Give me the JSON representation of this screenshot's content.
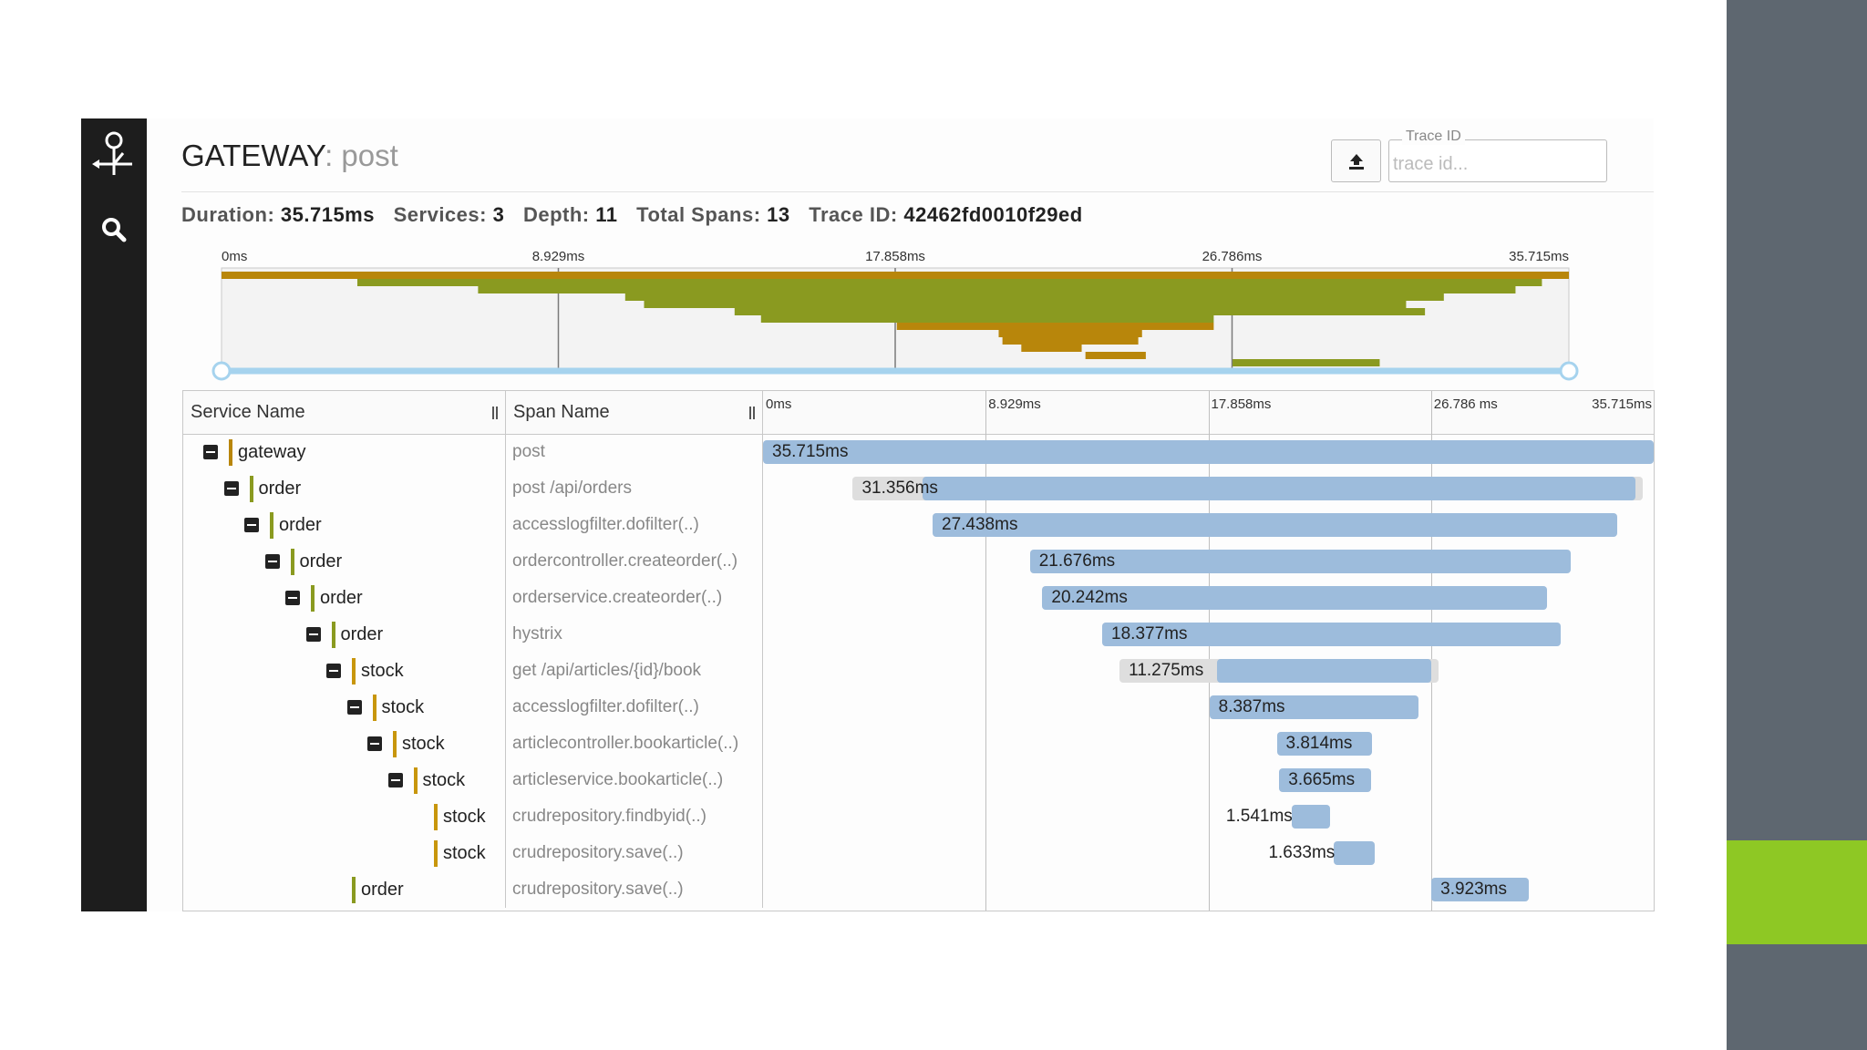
{
  "colors": {
    "sidebar_bg": "#1d1d1d",
    "bar_blue": "#9dbcdc",
    "bar_ghost": "#dedede",
    "service_gateway": "#b8860b",
    "service_order": "#8a9a20",
    "service_stock": "#c8960c",
    "right_strip": "#5e6770",
    "right_accent": "#8ec824",
    "range_handle": "#a6d3ee"
  },
  "sidebar": {
    "logo_icon": "zipkin-logo-icon",
    "search_icon": "search-icon"
  },
  "header": {
    "service": "GATEWAY",
    "separator": ": ",
    "span": "post",
    "upload_icon": "upload-icon",
    "trace_id_label": "Trace ID",
    "trace_id_placeholder": "trace id..."
  },
  "stats": {
    "duration_label": "Duration:",
    "duration": "35.715ms",
    "services_label": "Services:",
    "services": "3",
    "depth_label": "Depth:",
    "depth": "11",
    "spans_label": "Total Spans:",
    "spans": "13",
    "traceid_label": "Trace ID:",
    "trace_id": "42462fd0010f29ed"
  },
  "timeline": {
    "total_ms": 35.715,
    "ticks": [
      "0ms",
      "8.929ms",
      "17.858ms",
      "26.786ms",
      "35.715ms"
    ],
    "table_ticks": [
      "0ms",
      "8.929ms",
      "17.858ms",
      "26.786 ms",
      "35.715ms"
    ]
  },
  "table": {
    "col_service": "Service Name",
    "col_span": "Span Name",
    "rows": [
      {
        "depth": 0,
        "toggle": true,
        "service": "gateway",
        "color": "#b8860b",
        "span": "post",
        "start_ms": 0.0,
        "duration_ms": 35.715,
        "label": "35.715ms",
        "ghost_start_ms": null
      },
      {
        "depth": 1,
        "toggle": true,
        "service": "order",
        "color": "#8a9a20",
        "span": "post /api/orders",
        "start_ms": 6.4,
        "duration_ms": 28.6,
        "label": "31.356ms",
        "ghost_start_ms": 3.6
      },
      {
        "depth": 2,
        "toggle": true,
        "service": "order",
        "color": "#8a9a20",
        "span": "accesslogfilter.dofilter(..)",
        "start_ms": 6.8,
        "duration_ms": 27.438,
        "label": "27.438ms",
        "ghost_start_ms": null
      },
      {
        "depth": 3,
        "toggle": true,
        "service": "order",
        "color": "#8a9a20",
        "span": "ordercontroller.createorder(..)",
        "start_ms": 10.7,
        "duration_ms": 21.676,
        "label": "21.676ms",
        "ghost_start_ms": null
      },
      {
        "depth": 4,
        "toggle": true,
        "service": "order",
        "color": "#8a9a20",
        "span": "orderservice.createorder(..)",
        "start_ms": 11.2,
        "duration_ms": 20.242,
        "label": "20.242ms",
        "ghost_start_ms": null
      },
      {
        "depth": 5,
        "toggle": true,
        "service": "order",
        "color": "#8a9a20",
        "span": "hystrix",
        "start_ms": 13.6,
        "duration_ms": 18.377,
        "label": "18.377ms",
        "ghost_start_ms": null
      },
      {
        "depth": 6,
        "toggle": true,
        "service": "stock",
        "color": "#c8960c",
        "span": "get /api/articles/{id}/book",
        "start_ms": 18.2,
        "duration_ms": 8.6,
        "label": "11.275ms",
        "ghost_start_ms": 14.3
      },
      {
        "depth": 7,
        "toggle": true,
        "service": "stock",
        "color": "#c8960c",
        "span": "accesslogfilter.dofilter(..)",
        "start_ms": 17.9,
        "duration_ms": 8.387,
        "label": "8.387ms",
        "ghost_start_ms": null
      },
      {
        "depth": 8,
        "toggle": true,
        "service": "stock",
        "color": "#c8960c",
        "span": "articlecontroller.bookarticle(..)",
        "start_ms": 20.6,
        "duration_ms": 3.814,
        "label": "3.814ms",
        "ghost_start_ms": null
      },
      {
        "depth": 9,
        "toggle": true,
        "service": "stock",
        "color": "#c8960c",
        "span": "articleservice.bookarticle(..)",
        "start_ms": 20.7,
        "duration_ms": 3.665,
        "label": "3.665ms",
        "ghost_start_ms": null
      },
      {
        "depth": 10,
        "toggle": false,
        "service": "stock",
        "color": "#c8960c",
        "span": "crudrepository.findbyid(..)",
        "start_ms": 21.2,
        "duration_ms": 1.541,
        "label": "1.541ms",
        "ghost_start_ms": null
      },
      {
        "depth": 10,
        "toggle": false,
        "service": "stock",
        "color": "#c8960c",
        "span": "crudrepository.save(..)",
        "start_ms": 22.9,
        "duration_ms": 1.633,
        "label": "1.633ms",
        "ghost_start_ms": null
      },
      {
        "depth": 6,
        "toggle": false,
        "service": "order",
        "color": "#8a9a20",
        "span": "crudrepository.save(..)",
        "start_ms": 26.8,
        "duration_ms": 3.923,
        "label": "3.923ms",
        "ghost_start_ms": null
      }
    ]
  },
  "minimap_bands": [
    {
      "start_ms": 0.0,
      "end_ms": 35.715,
      "color": "#b8860b"
    },
    {
      "start_ms": 3.6,
      "end_ms": 35.0,
      "color": "#8a9a20"
    },
    {
      "start_ms": 6.8,
      "end_ms": 34.3,
      "color": "#8a9a20"
    },
    {
      "start_ms": 10.7,
      "end_ms": 32.4,
      "color": "#8a9a20"
    },
    {
      "start_ms": 11.2,
      "end_ms": 31.4,
      "color": "#8a9a20"
    },
    {
      "start_ms": 13.6,
      "end_ms": 31.9,
      "color": "#8a9a20"
    },
    {
      "start_ms": 14.3,
      "end_ms": 26.3,
      "color": "#8a9a20"
    },
    {
      "start_ms": 17.9,
      "end_ms": 26.3,
      "color": "#b8860b"
    },
    {
      "start_ms": 20.6,
      "end_ms": 24.4,
      "color": "#b8860b"
    },
    {
      "start_ms": 20.7,
      "end_ms": 24.3,
      "color": "#b8860b"
    },
    {
      "start_ms": 21.2,
      "end_ms": 22.8,
      "color": "#b8860b"
    },
    {
      "start_ms": 22.9,
      "end_ms": 24.5,
      "color": "#b8860b"
    },
    {
      "start_ms": 26.8,
      "end_ms": 30.7,
      "color": "#8a9a20"
    }
  ]
}
